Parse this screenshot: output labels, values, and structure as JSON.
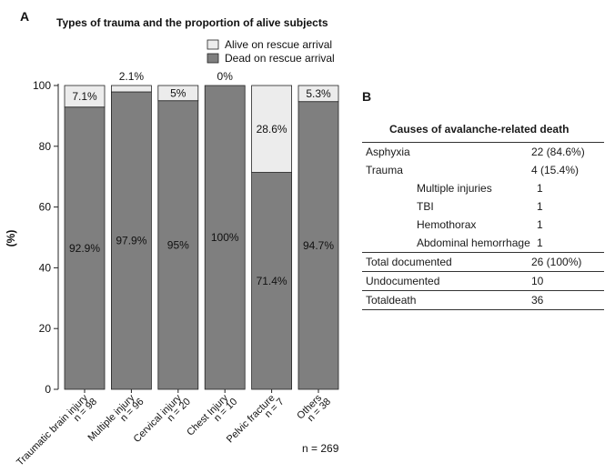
{
  "panel_a": {
    "letter": "A"
  },
  "panel_b": {
    "letter": "B",
    "title": "Causes of avalanche-related death",
    "rows": [
      {
        "label": "Asphyxia",
        "value": "22 (84.6%)",
        "indent": false,
        "top": true,
        "bottom": false
      },
      {
        "label": "Trauma",
        "value": "4 (15.4%)",
        "indent": false,
        "top": false,
        "bottom": false
      },
      {
        "label": "Multiple injuries",
        "value": "1",
        "indent": true,
        "top": false,
        "bottom": false
      },
      {
        "label": "TBI",
        "value": "1",
        "indent": true,
        "top": false,
        "bottom": false
      },
      {
        "label": "Hemothorax",
        "value": "1",
        "indent": true,
        "top": false,
        "bottom": false
      },
      {
        "label": "Abdominal hemorrhage",
        "value": "1",
        "indent": true,
        "top": false,
        "bottom": false
      },
      {
        "label": "Total documented",
        "value": "26 (100%)",
        "indent": false,
        "top": true,
        "bottom": false
      },
      {
        "label": "Undocumented",
        "value": "10",
        "indent": false,
        "top": true,
        "bottom": false
      },
      {
        "label": "Totaldeath",
        "value": "36",
        "indent": false,
        "top": true,
        "bottom": true
      }
    ]
  },
  "colors": {
    "dead": "#7f7f7f",
    "alive": "#ececec",
    "stroke": "#222222"
  },
  "chart_data": {
    "type": "bar",
    "stacked": true,
    "title": "Types of trauma and the proportion of alive subjects",
    "ylabel": "(%)",
    "xlabel": "",
    "ylim": [
      0,
      100
    ],
    "yticks": [
      0,
      20,
      40,
      60,
      80,
      100
    ],
    "categories": [
      "Traumatic brain injury",
      "Multiple injury",
      "Cervical injury",
      "Chest Injury",
      "Pelvic fracture",
      "Others"
    ],
    "n_labels": [
      "n = 98",
      "n = 96",
      "n = 20",
      "n = 10",
      "n = 7",
      "n = 38"
    ],
    "series": [
      {
        "name": "Dead on rescue arrival",
        "values": [
          92.9,
          97.9,
          95,
          100,
          71.4,
          94.7
        ],
        "labels": [
          "92.9%",
          "97.9%",
          "95%",
          "100%",
          "71.4%",
          "94.7%"
        ]
      },
      {
        "name": "Alive on rescue arrival",
        "values": [
          7.1,
          2.1,
          5,
          0,
          28.6,
          5.3
        ],
        "labels": [
          "7.1%",
          "2.1%",
          "5%",
          "0%",
          "28.6%",
          "5.3%"
        ]
      }
    ],
    "total_label": "n = 269",
    "legend_position": "top-right",
    "grid": false
  }
}
